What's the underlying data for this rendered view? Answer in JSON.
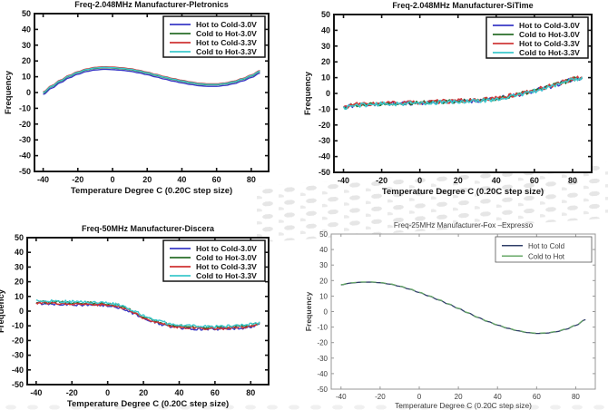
{
  "page": {
    "background": "#ffffff",
    "watermark_color": "#e4e4e4"
  },
  "chart_data": [
    {
      "id": "pletronics",
      "type": "line",
      "title": "Freq-2.048MHz  Manufacturer-Pletronics",
      "xlabel": "Temperature Degree C (0.20C step size)",
      "ylabel": "Frequency",
      "style": "matlab",
      "xlim": [
        -45,
        90
      ],
      "ylim": [
        -50,
        50
      ],
      "xticks": [
        -40,
        -20,
        0,
        20,
        40,
        60,
        80
      ],
      "yticks": [
        -50,
        -40,
        -30,
        -20,
        -10,
        0,
        10,
        20,
        30,
        40,
        50
      ],
      "grid": false,
      "legend_position": "top-right",
      "base_points": [
        [
          -40,
          -0.5
        ],
        [
          -35,
          3.5
        ],
        [
          -30,
          7
        ],
        [
          -25,
          10
        ],
        [
          -20,
          12.3
        ],
        [
          -15,
          14
        ],
        [
          -10,
          15
        ],
        [
          -5,
          15.4
        ],
        [
          0,
          15.2
        ],
        [
          5,
          14.8
        ],
        [
          10,
          14.2
        ],
        [
          15,
          13.2
        ],
        [
          20,
          12
        ],
        [
          25,
          10.6
        ],
        [
          30,
          9.2
        ],
        [
          35,
          7.9
        ],
        [
          40,
          6.8
        ],
        [
          45,
          5.8
        ],
        [
          50,
          5
        ],
        [
          55,
          4.6
        ],
        [
          60,
          4.6
        ],
        [
          65,
          5.2
        ],
        [
          70,
          6.3
        ],
        [
          75,
          8
        ],
        [
          80,
          10.2
        ],
        [
          85,
          13
        ]
      ],
      "series": [
        {
          "name": "Hot to Cold-3.0V",
          "color": "#3a3ac6",
          "offset": -0.7,
          "noise": 0,
          "seed": 1
        },
        {
          "name": "Cold to Hot-3.0V",
          "color": "#2a6e2a",
          "offset": 0.3,
          "noise": 0,
          "seed": 2
        },
        {
          "name": "Hot to Cold-3.3V",
          "color": "#cf3232",
          "offset": 0.9,
          "noise": 0,
          "seed": 3
        },
        {
          "name": "Cold to Hot-3.3V",
          "color": "#3cc8cc",
          "offset": 0.55,
          "noise": 0,
          "seed": 4
        }
      ]
    },
    {
      "id": "sitime",
      "type": "line",
      "title": "Freq-2.048MHz  Manufacturer-SiTime",
      "xlabel": "Temperature Degree C (0.20C step size)",
      "ylabel": "Frequency",
      "style": "matlab",
      "xlim": [
        -45,
        90
      ],
      "ylim": [
        -50,
        50
      ],
      "xticks": [
        -40,
        -20,
        0,
        20,
        40,
        60,
        80
      ],
      "yticks": [
        -50,
        -40,
        -30,
        -20,
        -10,
        0,
        10,
        20,
        30,
        40,
        50
      ],
      "grid": false,
      "legend_position": "top-right",
      "base_points": [
        [
          -40,
          -9
        ],
        [
          -36,
          -7.8
        ],
        [
          -32,
          -7.2
        ],
        [
          -28,
          -7
        ],
        [
          -24,
          -6.8
        ],
        [
          -20,
          -6.6
        ],
        [
          -16,
          -6.4
        ],
        [
          -12,
          -6.3
        ],
        [
          -8,
          -6.2
        ],
        [
          -4,
          -6.1
        ],
        [
          0,
          -6
        ],
        [
          4,
          -5.8
        ],
        [
          8,
          -5.6
        ],
        [
          12,
          -5.4
        ],
        [
          16,
          -5.2
        ],
        [
          20,
          -5
        ],
        [
          24,
          -4.8
        ],
        [
          28,
          -4.6
        ],
        [
          32,
          -4.4
        ],
        [
          36,
          -4
        ],
        [
          40,
          -3.4
        ],
        [
          44,
          -2.6
        ],
        [
          48,
          -1.7
        ],
        [
          52,
          -0.7
        ],
        [
          56,
          0.4
        ],
        [
          60,
          1.6
        ],
        [
          64,
          3
        ],
        [
          68,
          4.4
        ],
        [
          72,
          5.8
        ],
        [
          76,
          7.2
        ],
        [
          80,
          8.8
        ],
        [
          85,
          10
        ]
      ],
      "series": [
        {
          "name": "Hot to Cold-3.0V",
          "color": "#3a3ac6",
          "offset": 0,
          "noise": 1.3,
          "seed": 11
        },
        {
          "name": "Cold to Hot-3.0V",
          "color": "#2a6e2a",
          "offset": 0.2,
          "noise": 1.3,
          "seed": 22
        },
        {
          "name": "Hot to Cold-3.3V",
          "color": "#cf3939",
          "offset": 0.3,
          "noise": 1.3,
          "seed": 33
        },
        {
          "name": "Cold to Hot-3.3V",
          "color": "#3cc8cc",
          "offset": -0.2,
          "noise": 1.3,
          "seed": 44
        }
      ]
    },
    {
      "id": "discera",
      "type": "line",
      "title": "Freq-50MHz  Manufacturer-Discera",
      "xlabel": "Temperature Degree C (0.20C step size)",
      "ylabel": "Frequency",
      "style": "matlab",
      "xlim": [
        -45,
        90
      ],
      "ylim": [
        -50,
        50
      ],
      "xticks": [
        -40,
        -20,
        0,
        20,
        40,
        60,
        80
      ],
      "yticks": [
        -50,
        -40,
        -30,
        -20,
        -10,
        0,
        10,
        20,
        30,
        40,
        50
      ],
      "grid": false,
      "legend_position": "top-right",
      "base_points": [
        [
          -40,
          6
        ],
        [
          -35,
          6
        ],
        [
          -30,
          5.8
        ],
        [
          -25,
          5.6
        ],
        [
          -20,
          5.4
        ],
        [
          -15,
          5.2
        ],
        [
          -10,
          5
        ],
        [
          -5,
          4.8
        ],
        [
          0,
          4.4
        ],
        [
          5,
          3.6
        ],
        [
          10,
          1.8
        ],
        [
          15,
          -1
        ],
        [
          20,
          -4
        ],
        [
          25,
          -6.4
        ],
        [
          30,
          -8.2
        ],
        [
          35,
          -9.6
        ],
        [
          40,
          -10.4
        ],
        [
          45,
          -10.9
        ],
        [
          50,
          -11.2
        ],
        [
          55,
          -11.4
        ],
        [
          60,
          -11.5
        ],
        [
          65,
          -11.4
        ],
        [
          70,
          -11.1
        ],
        [
          75,
          -10.6
        ],
        [
          80,
          -10
        ],
        [
          85,
          -8.8
        ]
      ],
      "series": [
        {
          "name": "Hot to Cold-3.0V",
          "color": "#3a3ac6",
          "offset": -0.8,
          "noise": 0.9,
          "seed": 55
        },
        {
          "name": "Cold to Hot-3.0V",
          "color": "#2a6e2a",
          "offset": 0.4,
          "noise": 0.9,
          "seed": 66
        },
        {
          "name": "Hot to Cold-3.3V",
          "color": "#cf3232",
          "offset": -0.3,
          "noise": 0.9,
          "seed": 77
        },
        {
          "name": "Cold to Hot-3.3V",
          "color": "#3cc8cc",
          "offset": 1.0,
          "noise": 0.9,
          "seed": 88
        }
      ]
    },
    {
      "id": "fox-expresso",
      "type": "line",
      "title": "Freq-25MHz  Manufacturer-Fox –Expresso",
      "xlabel": "Temperature Degree C (0.20C step size)",
      "ylabel": "Frequency",
      "style": "light",
      "xlim": [
        -45,
        90
      ],
      "ylim": [
        -50,
        50
      ],
      "xticks": [
        -40,
        -20,
        0,
        20,
        40,
        60,
        80
      ],
      "yticks": [
        -50,
        -40,
        -30,
        -20,
        -10,
        0,
        10,
        20,
        30,
        40,
        50
      ],
      "grid": false,
      "legend_position": "top-right",
      "base_points": [
        [
          -40,
          17.2
        ],
        [
          -35,
          18.4
        ],
        [
          -30,
          18.9
        ],
        [
          -25,
          19
        ],
        [
          -20,
          18.6
        ],
        [
          -15,
          17.7
        ],
        [
          -10,
          16.3
        ],
        [
          -5,
          14.5
        ],
        [
          0,
          12.3
        ],
        [
          5,
          10
        ],
        [
          10,
          7.5
        ],
        [
          15,
          4.8
        ],
        [
          20,
          2
        ],
        [
          25,
          -0.9
        ],
        [
          30,
          -3.8
        ],
        [
          35,
          -6.4
        ],
        [
          40,
          -8.7
        ],
        [
          45,
          -10.7
        ],
        [
          50,
          -12.3
        ],
        [
          55,
          -13.5
        ],
        [
          60,
          -14.1
        ],
        [
          65,
          -13.9
        ],
        [
          70,
          -13
        ],
        [
          75,
          -11.4
        ],
        [
          80,
          -8.9
        ],
        [
          85,
          -5.2
        ]
      ],
      "series": [
        {
          "name": "Hot to Cold",
          "color": "#2f3e68",
          "offset": 0,
          "noise": 0,
          "seed": 5
        },
        {
          "name": "Cold to Hot",
          "color": "#67a867",
          "offset": 0.15,
          "noise": 0,
          "seed": 6,
          "dash": "6 5"
        }
      ]
    }
  ]
}
